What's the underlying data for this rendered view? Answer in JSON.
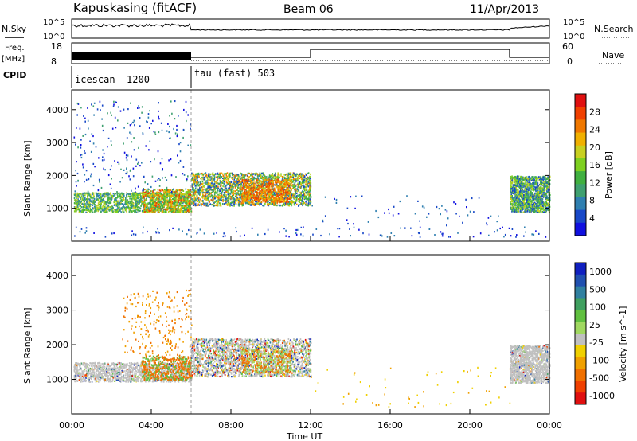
{
  "header": {
    "station": "Kapuskasing (fitACF)",
    "beam": "Beam 06",
    "date": "11/Apr/2013"
  },
  "top_panels": {
    "nsky_label": "N.Sky",
    "nsky_ticks": [
      "10^5",
      "10^0"
    ],
    "nsearch_label": "N.Search",
    "nsearch_ticks": [
      "10^5",
      "10^0"
    ],
    "freq_label_1": "Freq.",
    "freq_label_2": "[MHz]",
    "freq_ticks": [
      "18",
      "8"
    ],
    "nave_label": "Nave",
    "nave_ticks": [
      "60",
      "0"
    ],
    "cpid_label": "CPID",
    "cpid_segments": [
      {
        "label": "icescan -1200",
        "start": 0,
        "end": 6
      },
      {
        "label": "tau (fast) 503",
        "start": 6,
        "end": 24
      }
    ]
  },
  "chart_data": [
    {
      "type": "heatmap",
      "name": "power",
      "ylabel": "Slant Range [km]",
      "xlabel": "Time UT",
      "x_ticks": [
        "00:00",
        "04:00",
        "08:00",
        "12:00",
        "16:00",
        "20:00",
        "00:00"
      ],
      "xlim_hours": [
        0,
        24
      ],
      "ylim": [
        0,
        4600
      ],
      "y_ticks": [
        1000,
        2000,
        3000,
        4000
      ],
      "colorbar": {
        "label": "Power [dB]",
        "ticks": [
          "4",
          "8",
          "12",
          "16",
          "20",
          "24",
          "28"
        ],
        "colors": [
          "#1010e0",
          "#1848c8",
          "#2f7fb0",
          "#3fa070",
          "#40b040",
          "#7ed020",
          "#c8d020",
          "#f0b000",
          "#f07800",
          "#f04000",
          "#e01010"
        ]
      }
    },
    {
      "type": "heatmap",
      "name": "velocity",
      "ylabel": "Slant Range [km]",
      "xlabel": "Time UT",
      "x_ticks": [
        "00:00",
        "04:00",
        "08:00",
        "12:00",
        "16:00",
        "20:00",
        "00:00"
      ],
      "xlim_hours": [
        0,
        24
      ],
      "ylim": [
        0,
        4600
      ],
      "y_ticks": [
        1000,
        2000,
        3000,
        4000
      ],
      "colorbar": {
        "label": "Velocity [m s^-1]",
        "ticks": [
          "1000",
          "500",
          "100",
          "25",
          "-25",
          "-100",
          "-500",
          "-1000"
        ],
        "colors": [
          "#1020c0",
          "#2050b0",
          "#3080a0",
          "#40a060",
          "#60c040",
          "#a0d860",
          "#c0c0c0",
          "#f0d000",
          "#f0a000",
          "#f07000",
          "#f04000",
          "#e01010"
        ]
      }
    }
  ]
}
